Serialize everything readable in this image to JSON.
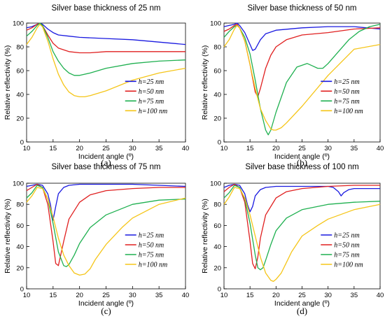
{
  "colors": {
    "h25": "#1a1ae0",
    "h50": "#e02020",
    "h75": "#1fb050",
    "h100": "#f5c518"
  },
  "chart_data": [
    {
      "type": "line",
      "panel_label": "(a)",
      "title": "Silver base thickness of 25 nm",
      "xlabel": "Incident angle (º)",
      "ylabel": "Relative reflectivity (%)",
      "xlim": [
        10,
        40
      ],
      "ylim": [
        0,
        100
      ],
      "xticks": [
        10,
        15,
        20,
        25,
        30,
        35,
        40
      ],
      "yticks": [
        0,
        20,
        40,
        60,
        80,
        100
      ],
      "legend_position": "center-right",
      "series": [
        {
          "name": "h=25 nm",
          "color_key": "h25",
          "x": [
            10,
            11,
            12,
            12.5,
            13,
            14,
            15,
            16,
            18,
            20,
            25,
            30,
            35,
            40
          ],
          "y": [
            96,
            97,
            99,
            100,
            99,
            95,
            92,
            90,
            89,
            88,
            87,
            86,
            84,
            82
          ]
        },
        {
          "name": "h=50 nm",
          "color_key": "h50",
          "x": [
            10,
            11,
            12,
            12.5,
            13,
            14,
            15,
            16,
            18,
            20,
            22,
            25,
            30,
            35,
            40
          ],
          "y": [
            94,
            96,
            99,
            100,
            98,
            90,
            83,
            79,
            76,
            75,
            75,
            76,
            76,
            76,
            76
          ]
        },
        {
          "name": "h=75 nm",
          "color_key": "h75",
          "x": [
            10,
            11,
            12,
            12.5,
            13,
            14,
            15,
            16,
            17,
            18,
            19,
            20,
            22,
            25,
            30,
            35,
            40
          ],
          "y": [
            89,
            93,
            98,
            100,
            98,
            88,
            76,
            68,
            62,
            58,
            56,
            56,
            58,
            62,
            66,
            68,
            69
          ]
        },
        {
          "name": "h=100 nm",
          "color_key": "h100",
          "x": [
            10,
            11,
            12,
            12.5,
            13,
            14,
            15,
            16,
            17,
            18,
            19,
            20,
            21,
            22,
            25,
            30,
            35,
            40
          ],
          "y": [
            82,
            88,
            96,
            99,
            97,
            85,
            70,
            57,
            48,
            42,
            39,
            38,
            38,
            39,
            43,
            52,
            58,
            62
          ]
        }
      ]
    },
    {
      "type": "line",
      "panel_label": "(b)",
      "title": "Silver base thickness of 50 nm",
      "xlabel": "Incident angle (º)",
      "ylabel": "Relative reflectivity (%)",
      "xlim": [
        10,
        40
      ],
      "ylim": [
        0,
        100
      ],
      "xticks": [
        10,
        15,
        20,
        25,
        30,
        35,
        40
      ],
      "yticks": [
        0,
        20,
        40,
        60,
        80,
        100
      ],
      "legend_position": "center-right",
      "series": [
        {
          "name": "h=25 nm",
          "color_key": "h25",
          "x": [
            10,
            11,
            12,
            12.5,
            13,
            14,
            15,
            15.5,
            16,
            17,
            18,
            20,
            25,
            30,
            35,
            40
          ],
          "y": [
            97,
            98,
            99,
            100,
            98,
            92,
            82,
            77,
            78,
            86,
            91,
            94,
            96,
            97,
            97,
            95
          ]
        },
        {
          "name": "h=50 nm",
          "color_key": "h50",
          "x": [
            10,
            11,
            12,
            12.5,
            13,
            14,
            15,
            16,
            16.5,
            17,
            18,
            19,
            20,
            22,
            25,
            30,
            35,
            40
          ],
          "y": [
            93,
            95,
            98,
            99,
            96,
            85,
            65,
            42,
            38,
            45,
            62,
            73,
            80,
            86,
            90,
            92,
            95,
            96
          ]
        },
        {
          "name": "h=75 nm",
          "color_key": "h75",
          "x": [
            10,
            11,
            12,
            12.5,
            13,
            14,
            15,
            16,
            17,
            18,
            18.5,
            19,
            20,
            22,
            24,
            26,
            27,
            28,
            29,
            30,
            32,
            34,
            36,
            38,
            40
          ],
          "y": [
            88,
            93,
            97,
            98,
            96,
            88,
            74,
            52,
            28,
            10,
            6,
            10,
            25,
            50,
            63,
            66,
            64,
            62,
            62,
            66,
            76,
            86,
            93,
            97,
            99
          ]
        },
        {
          "name": "h=100 nm",
          "color_key": "h100",
          "x": [
            10,
            11,
            12,
            12.5,
            13,
            14,
            15,
            16,
            17,
            18,
            19,
            19.5,
            20,
            21,
            22,
            25,
            30,
            35,
            40
          ],
          "y": [
            80,
            86,
            95,
            98,
            96,
            85,
            65,
            45,
            28,
            18,
            11,
            10,
            10,
            12,
            16,
            30,
            56,
            78,
            82
          ]
        }
      ]
    },
    {
      "type": "line",
      "panel_label": "(c)",
      "title": "Silver base thickness of 75 nm",
      "xlabel": "Incident angle (º)",
      "ylabel": "Relative reflectivity (%)",
      "xlim": [
        10,
        40
      ],
      "ylim": [
        0,
        100
      ],
      "xticks": [
        10,
        15,
        20,
        25,
        30,
        35,
        40
      ],
      "yticks": [
        0,
        20,
        40,
        60,
        80,
        100
      ],
      "legend_position": "center-right",
      "series": [
        {
          "name": "h=25 nm",
          "color_key": "h25",
          "x": [
            10,
            11,
            12,
            13,
            14,
            14.5,
            15,
            15.5,
            16,
            17,
            18,
            20,
            25,
            30,
            35,
            40
          ],
          "y": [
            97,
            98,
            99,
            98,
            90,
            80,
            65,
            78,
            90,
            96,
            98,
            99,
            99,
            99,
            98,
            97
          ]
        },
        {
          "name": "h=50 nm",
          "color_key": "h50",
          "x": [
            10,
            11,
            12,
            13,
            14,
            15,
            15.5,
            16,
            17,
            18,
            20,
            22,
            25,
            30,
            35,
            40
          ],
          "y": [
            93,
            96,
            99,
            96,
            80,
            45,
            24,
            22,
            45,
            66,
            82,
            89,
            93,
            95,
            96,
            96
          ]
        },
        {
          "name": "h=75 nm",
          "color_key": "h75",
          "x": [
            10,
            11,
            12,
            13,
            14,
            15,
            16,
            17,
            17.5,
            18,
            19,
            20,
            22,
            25,
            30,
            35,
            40
          ],
          "y": [
            86,
            91,
            98,
            96,
            85,
            62,
            35,
            22,
            21,
            23,
            32,
            43,
            58,
            70,
            80,
            84,
            85
          ]
        },
        {
          "name": "h=100 nm",
          "color_key": "h100",
          "x": [
            10,
            11,
            12,
            13,
            14,
            15,
            16,
            17,
            18,
            19,
            20,
            21,
            22,
            23,
            25,
            28,
            30,
            35,
            40
          ],
          "y": [
            82,
            88,
            96,
            95,
            85,
            68,
            48,
            32,
            22,
            15,
            13,
            14,
            19,
            28,
            42,
            58,
            67,
            80,
            86
          ]
        }
      ]
    },
    {
      "type": "line",
      "panel_label": "(d)",
      "title": "Silver base thickness of 100 nm",
      "xlabel": "Incident angle (º)",
      "ylabel": "Relative reflectivity (%)",
      "xlim": [
        10,
        40
      ],
      "ylim": [
        0,
        100
      ],
      "xticks": [
        10,
        15,
        20,
        25,
        30,
        35,
        40
      ],
      "yticks": [
        0,
        20,
        40,
        60,
        80,
        100
      ],
      "legend_position": "center-right",
      "series": [
        {
          "name": "h=25 nm",
          "color_key": "h25",
          "x": [
            10,
            11,
            12,
            13,
            14,
            14.5,
            15,
            15.5,
            16,
            17,
            18,
            20,
            25,
            30,
            31,
            32,
            32.5,
            33,
            34,
            35,
            40
          ],
          "y": [
            96,
            98,
            99,
            98,
            90,
            80,
            73,
            78,
            88,
            94,
            96,
            97,
            97,
            97,
            96,
            92,
            88,
            91,
            94,
            95,
            95
          ]
        },
        {
          "name": "h=50 nm",
          "color_key": "h50",
          "x": [
            10,
            11,
            12,
            13,
            14,
            15,
            15.5,
            16,
            16.5,
            17,
            18,
            20,
            22,
            25,
            30,
            35,
            40
          ],
          "y": [
            92,
            96,
            99,
            96,
            82,
            45,
            24,
            19,
            30,
            48,
            70,
            86,
            92,
            95,
            97,
            98,
            98
          ]
        },
        {
          "name": "h=75 nm",
          "color_key": "h75",
          "x": [
            10,
            11,
            12,
            13,
            14,
            15,
            16,
            16.5,
            17,
            17.5,
            18,
            19,
            20,
            22,
            25,
            30,
            35,
            40
          ],
          "y": [
            86,
            91,
            98,
            96,
            85,
            62,
            32,
            20,
            18,
            20,
            27,
            42,
            55,
            67,
            75,
            80,
            82,
            83
          ]
        },
        {
          "name": "h=100 nm",
          "color_key": "h100",
          "x": [
            10,
            11,
            12,
            13,
            14,
            15,
            16,
            17,
            18,
            19,
            19.5,
            20,
            21,
            22,
            23,
            25,
            28,
            30,
            35,
            40
          ],
          "y": [
            80,
            87,
            96,
            95,
            86,
            70,
            50,
            30,
            15,
            8,
            7,
            9,
            15,
            25,
            35,
            50,
            60,
            66,
            75,
            80
          ]
        }
      ]
    }
  ]
}
